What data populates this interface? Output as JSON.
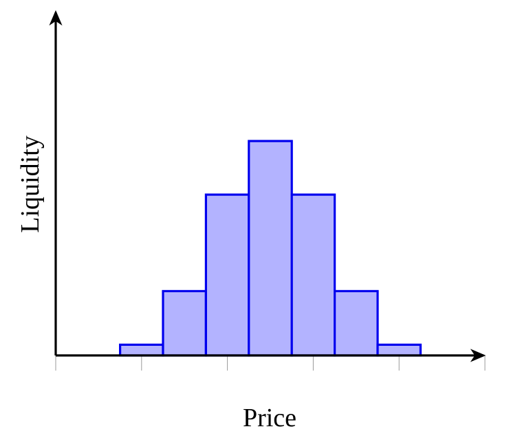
{
  "chart_data": {
    "type": "bar",
    "title": "",
    "xlabel": "Price",
    "ylabel": "Liquidity",
    "values": [
      0.05,
      0.3,
      0.75,
      1.0,
      0.75,
      0.3,
      0.05
    ],
    "bin_edges": [
      0.75,
      1.25,
      1.75,
      2.25,
      2.75,
      3.25,
      3.75,
      4.25
    ],
    "xlim": [
      0,
      5
    ],
    "ylim": [
      0,
      1.6
    ],
    "x_ticks": [
      0,
      1,
      2,
      3,
      4,
      5
    ],
    "tick_labels_shown": false,
    "grid": false,
    "legend": "none",
    "bar_fill": "#b3b3ff",
    "bar_stroke": "#0000ee",
    "axis_color": "#000000",
    "tick_color": "#999999"
  }
}
